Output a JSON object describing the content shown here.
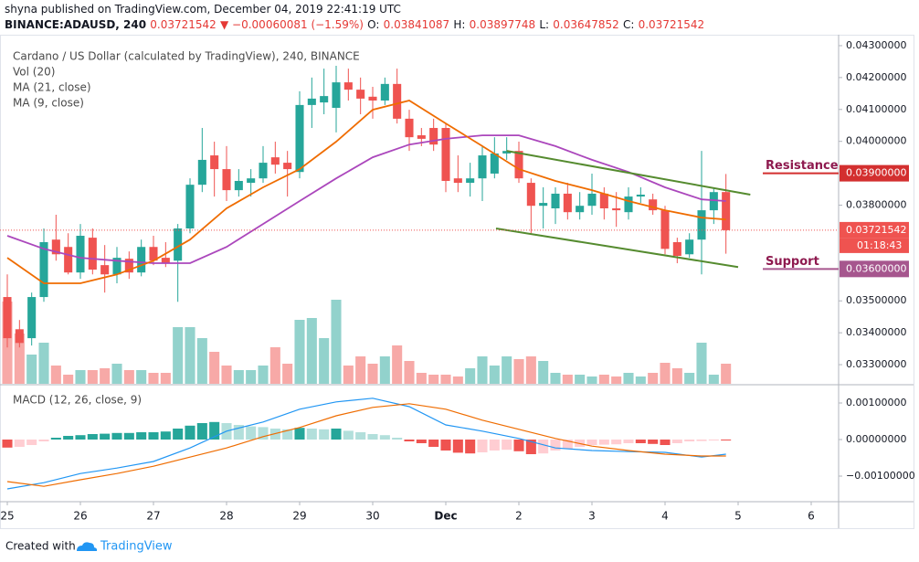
{
  "header": {
    "credit": "shyna published on TradingView.com, December 04, 2019 22:41:19 UTC",
    "symbol": "BINANCE:ADAUSD, 240",
    "last": "0.03721542",
    "change": "▼ −0.00060081 (−1.59%)",
    "ohlc": [
      {
        "key": "O:",
        "value": "0.03841087"
      },
      {
        "key": "H:",
        "value": "0.03897748"
      },
      {
        "key": "L:",
        "value": "0.03647852"
      },
      {
        "key": "C:",
        "value": "0.03721542"
      }
    ]
  },
  "footer": {
    "text": "Created with",
    "brand": "TradingView"
  },
  "chart_data": {
    "type": "candlestick",
    "title": "Cardano / US Dollar (calculated by TradingView), 240, BINANCE",
    "indicators": [
      "Vol (20)"
    ],
    "up_color": "#26a69a",
    "down_color": "#ef5350",
    "x": [
      0,
      4,
      8,
      12,
      16,
      20,
      24,
      28,
      32,
      36,
      40,
      44,
      48,
      52,
      56,
      60,
      64,
      68,
      72,
      76,
      80,
      84,
      88,
      92,
      96,
      100,
      104,
      108,
      112,
      116,
      120,
      124,
      128,
      132,
      136,
      140,
      144,
      148,
      152,
      156,
      160,
      164,
      168,
      172,
      176,
      180,
      184,
      188,
      192,
      196,
      200,
      204,
      208,
      212,
      216,
      220,
      224,
      228,
      232,
      236
    ],
    "xlim": [
      -2.4,
      273
    ],
    "xticks": [
      {
        "value": 0,
        "label": "25"
      },
      {
        "value": 24,
        "label": "26"
      },
      {
        "value": 48,
        "label": "27"
      },
      {
        "value": 72,
        "label": "28"
      },
      {
        "value": 96,
        "label": "29"
      },
      {
        "value": 120,
        "label": "30"
      },
      {
        "value": 144,
        "label": "Dec"
      },
      {
        "value": 168,
        "label": "2"
      },
      {
        "value": 192,
        "label": "3"
      },
      {
        "value": 216,
        "label": "4"
      },
      {
        "value": 240,
        "label": "5"
      },
      {
        "value": 264,
        "label": "6"
      }
    ],
    "ylim": [
      0.0324,
      0.0434
    ],
    "yticks": [
      {
        "value": 0.043,
        "label": "0.04300000"
      },
      {
        "value": 0.042,
        "label": "0.04200000"
      },
      {
        "value": 0.041,
        "label": "0.04100000"
      },
      {
        "value": 0.04,
        "label": "0.04000000"
      },
      {
        "value": 0.038,
        "label": "0.03800000"
      },
      {
        "value": 0.035,
        "label": "0.03500000"
      },
      {
        "value": 0.034,
        "label": "0.03400000"
      },
      {
        "value": 0.033,
        "label": "0.03300000"
      }
    ],
    "open": [
      0.03512,
      0.03411,
      0.03383,
      0.03512,
      0.03692,
      0.03669,
      0.03589,
      0.03698,
      0.03612,
      0.03583,
      0.03632,
      0.03589,
      0.03669,
      0.03635,
      0.03626,
      0.03727,
      0.03864,
      0.03956,
      0.03913,
      0.03847,
      0.0387,
      0.03884,
      0.0395,
      0.03933,
      0.03904,
      0.04114,
      0.04122,
      0.04105,
      0.04185,
      0.04162,
      0.0414,
      0.04128,
      0.0418,
      0.04071,
      0.04019,
      0.04042,
      0.04042,
      0.03884,
      0.0387,
      0.03884,
      0.03899,
      0.03962,
      0.0397,
      0.0387,
      0.03798,
      0.0379,
      0.03836,
      0.03778,
      0.03798,
      0.03836,
      0.0379,
      0.03778,
      0.03827,
      0.03818,
      0.03784,
      0.03684,
      0.03646,
      0.03692,
      0.03784,
      0.03841087
    ],
    "high": [
      0.03583,
      0.0344,
      0.03526,
      0.03727,
      0.0377,
      0.03712,
      0.03741,
      0.03727,
      0.03675,
      0.03669,
      0.03655,
      0.03692,
      0.03704,
      0.03684,
      0.03741,
      0.03884,
      0.04042,
      0.03999,
      0.03985,
      0.03913,
      0.03913,
      0.03985,
      0.03999,
      0.0397,
      0.04157,
      0.042,
      0.04228,
      0.04237,
      0.04228,
      0.042,
      0.04171,
      0.042,
      0.04228,
      0.04099,
      0.04042,
      0.04071,
      0.04056,
      0.03956,
      0.03933,
      0.03985,
      0.04013,
      0.04013,
      0.03999,
      0.03884,
      0.03856,
      0.03856,
      0.0387,
      0.03841,
      0.03899,
      0.03856,
      0.03841,
      0.03856,
      0.03856,
      0.03836,
      0.03798,
      0.03698,
      0.03712,
      0.0397,
      0.03856,
      0.03897748
    ],
    "low": [
      0.03354,
      0.03354,
      0.0336,
      0.03497,
      0.03626,
      0.03583,
      0.03569,
      0.03583,
      0.03526,
      0.03555,
      0.03569,
      0.03577,
      0.03612,
      0.03606,
      0.03497,
      0.03712,
      0.03841,
      0.03827,
      0.03813,
      0.03827,
      0.03827,
      0.0387,
      0.03899,
      0.03827,
      0.03884,
      0.04042,
      0.04085,
      0.04028,
      0.04128,
      0.04085,
      0.04071,
      0.04114,
      0.04056,
      0.0397,
      0.03985,
      0.0397,
      0.03841,
      0.03841,
      0.03827,
      0.03813,
      0.03884,
      0.03942,
      0.0387,
      0.03712,
      0.03727,
      0.03741,
      0.03755,
      0.03755,
      0.0377,
      0.03755,
      0.03732,
      0.03755,
      0.03807,
      0.0377,
      0.03646,
      0.03618,
      0.03635,
      0.03583,
      0.03741,
      0.03647852
    ],
    "close": [
      0.03383,
      0.03368,
      0.03512,
      0.03684,
      0.03646,
      0.03589,
      0.03704,
      0.03598,
      0.03583,
      0.03635,
      0.03589,
      0.03669,
      0.03626,
      0.03618,
      0.03727,
      0.03864,
      0.03942,
      0.03913,
      0.03847,
      0.03876,
      0.03884,
      0.03933,
      0.03927,
      0.03913,
      0.04114,
      0.04134,
      0.04142,
      0.04185,
      0.04162,
      0.04134,
      0.04128,
      0.0418,
      0.04071,
      0.04013,
      0.04008,
      0.0399,
      0.03876,
      0.0387,
      0.03884,
      0.03956,
      0.03962,
      0.0397,
      0.03884,
      0.03798,
      0.03807,
      0.03836,
      0.03778,
      0.03798,
      0.03836,
      0.0379,
      0.03784,
      0.03827,
      0.03833,
      0.03784,
      0.03663,
      0.03641,
      0.03692,
      0.03784,
      0.03841,
      0.03721542
    ],
    "volume": {
      "ylim": [
        0,
        384
      ],
      "values": [
        90,
        55,
        32,
        45,
        20,
        10,
        15,
        15,
        17,
        22,
        15,
        15,
        12,
        12,
        62,
        62,
        50,
        35,
        20,
        15,
        15,
        20,
        40,
        22,
        70,
        72,
        50,
        92,
        20,
        30,
        22,
        30,
        42,
        25,
        12,
        10,
        10,
        8,
        17,
        30,
        20,
        30,
        27,
        30,
        25,
        12,
        10,
        10,
        8,
        10,
        8,
        12,
        8,
        12,
        23,
        17,
        12,
        45,
        10,
        22
      ]
    },
    "series": [
      {
        "name": "MA (21, close)",
        "color": "#ab47bc",
        "x": [
          0,
          12,
          24,
          36,
          48,
          60,
          72,
          84,
          96,
          108,
          120,
          132,
          144,
          156,
          168,
          180,
          192,
          204,
          216,
          228,
          236
        ],
        "values": [
          0.03704,
          0.03663,
          0.03635,
          0.03626,
          0.03618,
          0.03618,
          0.03669,
          0.03741,
          0.03813,
          0.03884,
          0.0395,
          0.0399,
          0.04008,
          0.04019,
          0.04019,
          0.03985,
          0.03942,
          0.03904,
          0.03856,
          0.03818,
          0.03813
        ]
      },
      {
        "name": "MA (9, close)",
        "color": "#ef6c00",
        "x": [
          0,
          12,
          24,
          36,
          48,
          60,
          72,
          84,
          96,
          108,
          120,
          132,
          144,
          156,
          168,
          180,
          192,
          204,
          216,
          228,
          236
        ],
        "values": [
          0.03635,
          0.03555,
          0.03555,
          0.03583,
          0.03626,
          0.03692,
          0.0379,
          0.03856,
          0.03913,
          0.03999,
          0.04099,
          0.04128,
          0.04056,
          0.03985,
          0.03913,
          0.03876,
          0.03847,
          0.03813,
          0.03784,
          0.03761,
          0.03755
        ]
      }
    ],
    "trendlines": {
      "color": "#558b2f",
      "lines": [
        {
          "x": [
            164,
            244
          ],
          "values": [
            0.0397,
            0.03833
          ]
        },
        {
          "x": [
            160.5,
            240
          ],
          "values": [
            0.03727,
            0.03606
          ]
        }
      ]
    },
    "levels": [
      {
        "name": "Resistance",
        "value": 0.039,
        "label": "0.03900000",
        "color": "#d32f2f",
        "text_color": "#8e1a4f"
      },
      {
        "name": "Support",
        "value": 0.036,
        "label": "0.03600000",
        "color": "#a6568e",
        "text_color": "#8e1a4f"
      }
    ],
    "last_price": {
      "value": 0.03721542,
      "label": "0.03721542",
      "countdown": "01:18:43",
      "color": "#ef5350"
    },
    "macd": {
      "title": "MACD (12, 26, close, 9)",
      "ylim": [
        -0.0017,
        0.0015
      ],
      "yticks": [
        {
          "value": 0.001,
          "label": "0.00100000"
        },
        {
          "value": 0,
          "label": "0.00000000"
        },
        {
          "value": -0.001,
          "label": "−0.00100000"
        }
      ],
      "histogram": [
        -0.00022,
        -0.0002,
        -0.00015,
        -5e-05,
        5e-05,
        0.0001,
        0.00012,
        0.00015,
        0.00016,
        0.00018,
        0.00018,
        0.0002,
        0.0002,
        0.00022,
        0.0003,
        0.00038,
        0.00045,
        0.00048,
        0.00045,
        0.0004,
        0.00036,
        0.00034,
        0.0003,
        0.00028,
        0.00032,
        0.0003,
        0.00028,
        0.0003,
        0.00024,
        0.0002,
        0.00015,
        0.00012,
        5e-05,
        -5e-05,
        -0.0001,
        -0.0002,
        -0.0003,
        -0.00036,
        -0.00038,
        -0.00035,
        -0.0003,
        -0.00028,
        -0.00032,
        -0.0004,
        -0.00038,
        -0.0003,
        -0.00025,
        -0.0002,
        -0.00015,
        -0.00014,
        -0.00013,
        -0.0001,
        -0.0001,
        -0.00012,
        -0.00015,
        -0.0001,
        -5e-05,
        -4e-05,
        -2e-05,
        -2e-05
      ],
      "hist_colors": {
        "up_rising": "#26a69a",
        "up_falling": "#b2dfdb",
        "down_falling": "#ef5350",
        "down_rising": "#ffcdd2"
      },
      "series": [
        {
          "color": "#2196f3",
          "x": [
            0,
            12,
            24,
            36,
            48,
            60,
            72,
            84,
            96,
            108,
            120,
            132,
            144,
            156,
            168,
            180,
            192,
            204,
            216,
            228,
            236
          ],
          "values": [
            -0.00135,
            -0.00118,
            -0.00093,
            -0.00078,
            -0.0006,
            -0.00023,
            0.00023,
            0.00048,
            0.00083,
            0.00103,
            0.00113,
            0.0009,
            0.0004,
            0.00023,
            3e-05,
            -0.00023,
            -0.0003,
            -0.00033,
            -0.00035,
            -0.00048,
            -0.0004
          ]
        },
        {
          "color": "#ef6c00",
          "x": [
            0,
            12,
            24,
            36,
            48,
            60,
            72,
            84,
            96,
            108,
            120,
            132,
            144,
            156,
            168,
            180,
            192,
            204,
            216,
            228,
            236
          ],
          "values": [
            -0.00115,
            -0.00128,
            -0.0011,
            -0.00093,
            -0.00073,
            -0.00048,
            -0.00023,
            8e-05,
            0.00033,
            0.00065,
            0.00088,
            0.00098,
            0.00083,
            0.00053,
            0.00028,
            3e-05,
            -0.00018,
            -0.0003,
            -0.0004,
            -0.00045,
            -0.00045
          ]
        }
      ]
    }
  }
}
